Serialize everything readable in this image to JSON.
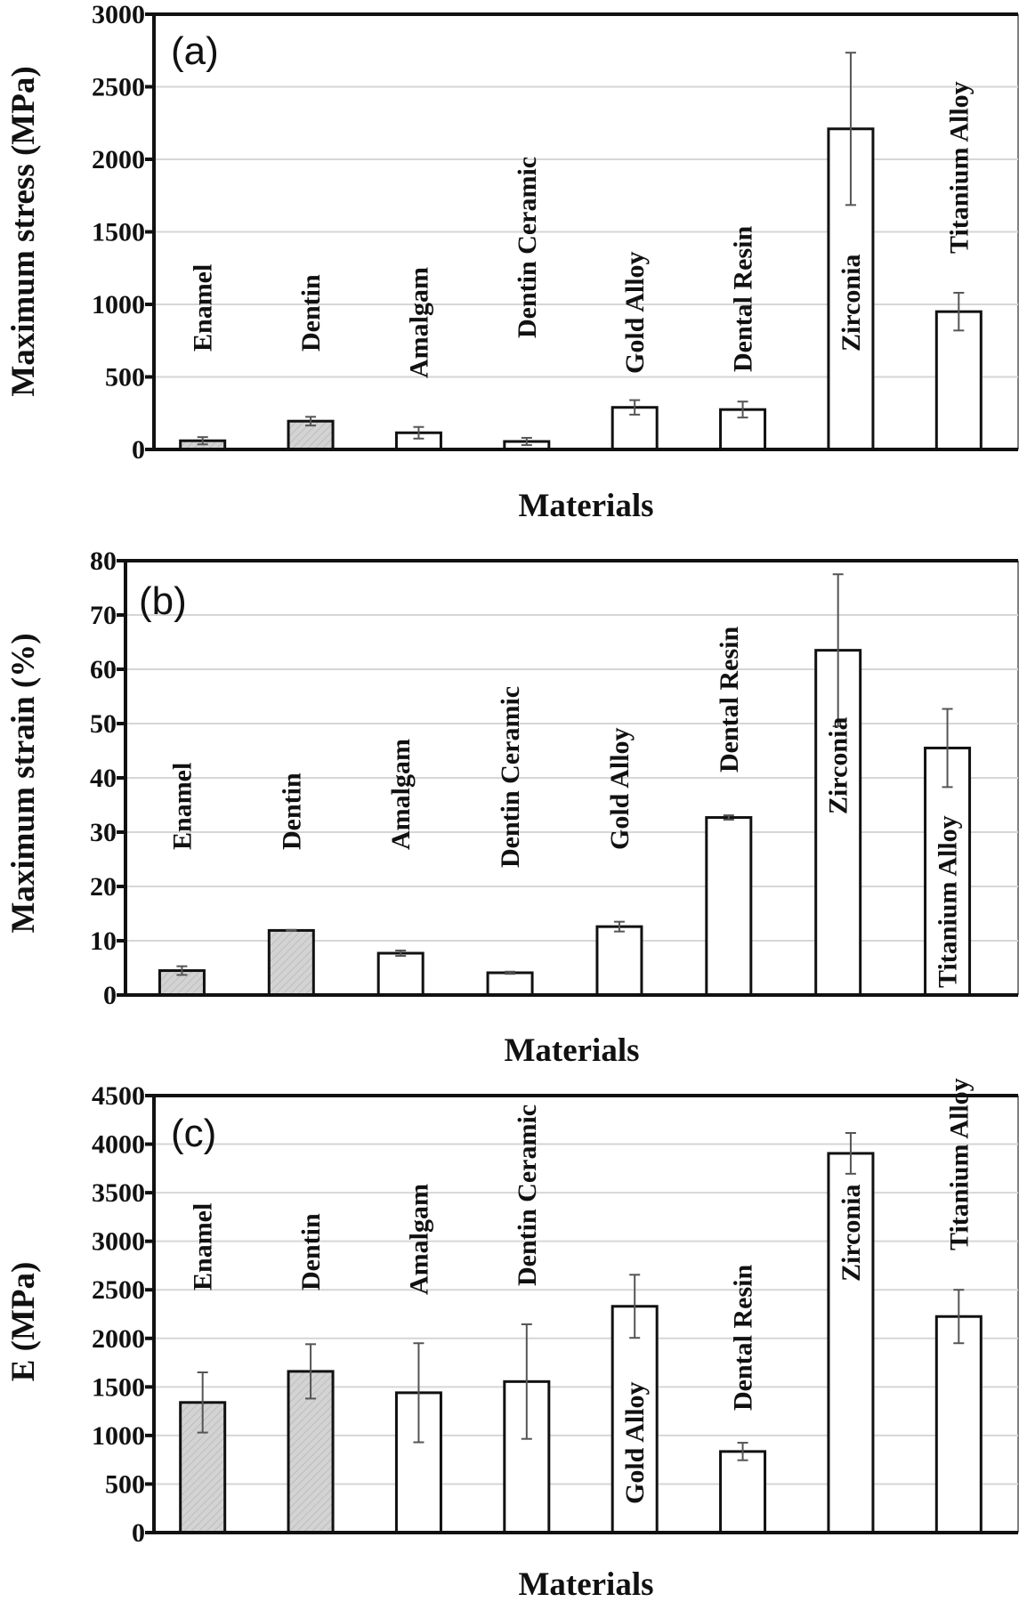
{
  "chart_data": [
    {
      "panel": "(a)",
      "type": "bar",
      "title": "",
      "xlabel": "Materials",
      "ylabel": "Maximum stress (MPa)",
      "ylim": [
        0,
        3000
      ],
      "yticks": [
        0,
        500,
        1000,
        1500,
        2000,
        2500,
        3000
      ],
      "grid": true,
      "categories": [
        "Enamel",
        "Dentin",
        "Amalgam",
        "Dentin Ceramic",
        "Gold Alloy",
        "Dental Resin",
        "Zirconia",
        "Titanium Alloy"
      ],
      "values": [
        60,
        195,
        115,
        55,
        290,
        275,
        2210,
        950
      ],
      "errors": [
        25,
        30,
        40,
        25,
        50,
        55,
        525,
        130
      ],
      "fill": [
        "hatched-gray",
        "hatched-gray",
        "white",
        "white",
        "white",
        "white",
        "white",
        "white"
      ],
      "label_inside_bar": [
        false,
        false,
        false,
        false,
        false,
        false,
        true,
        false
      ]
    },
    {
      "panel": "(b)",
      "type": "bar",
      "title": "",
      "xlabel": "Materials",
      "ylabel": "Maximum strain (%)",
      "ylim": [
        0,
        80
      ],
      "yticks": [
        0,
        10,
        20,
        30,
        40,
        50,
        60,
        70,
        80
      ],
      "grid": true,
      "categories": [
        "Enamel",
        "Dentin",
        "Amalgam",
        "Dentin Ceramic",
        "Gold Alloy",
        "Dental Resin",
        "Zirconia",
        "Titanium Alloy"
      ],
      "values": [
        4.5,
        11.9,
        7.7,
        4.1,
        12.6,
        32.7,
        63.5,
        45.5
      ],
      "errors": [
        0.8,
        0.1,
        0.5,
        0.2,
        0.9,
        0.4,
        14,
        7.2
      ],
      "fill": [
        "hatched-gray",
        "hatched-gray",
        "white",
        "white",
        "white",
        "white",
        "white",
        "white"
      ],
      "label_inside_bar": [
        false,
        false,
        false,
        false,
        false,
        false,
        true,
        true
      ]
    },
    {
      "panel": "(c)",
      "type": "bar",
      "title": "",
      "xlabel": "Materials",
      "ylabel": "E (MPa)",
      "ylim": [
        0,
        4500
      ],
      "yticks": [
        0,
        500,
        1000,
        1500,
        2000,
        2500,
        3000,
        3500,
        4000,
        4500
      ],
      "grid": true,
      "categories": [
        "Enamel",
        "Dentin",
        "Amalgam",
        "Dentin Ceramic",
        "Gold Alloy",
        "Dental Resin",
        "Zirconia",
        "Titanium Alloy"
      ],
      "values": [
        1340,
        1660,
        1440,
        1555,
        2330,
        835,
        3905,
        2225
      ],
      "errors": [
        310,
        280,
        510,
        590,
        325,
        90,
        210,
        275
      ],
      "fill": [
        "hatched-gray",
        "hatched-gray",
        "white",
        "white",
        "white",
        "white",
        "white",
        "white"
      ],
      "label_inside_bar": [
        false,
        false,
        false,
        false,
        true,
        false,
        true,
        false
      ]
    }
  ],
  "colors": {
    "axis": "#111111",
    "grid": "#d6d6d6",
    "bar_outline": "#111111",
    "hatched_fill": "#d3d3d3",
    "white_fill": "#ffffff",
    "error_bar": "#555555"
  }
}
